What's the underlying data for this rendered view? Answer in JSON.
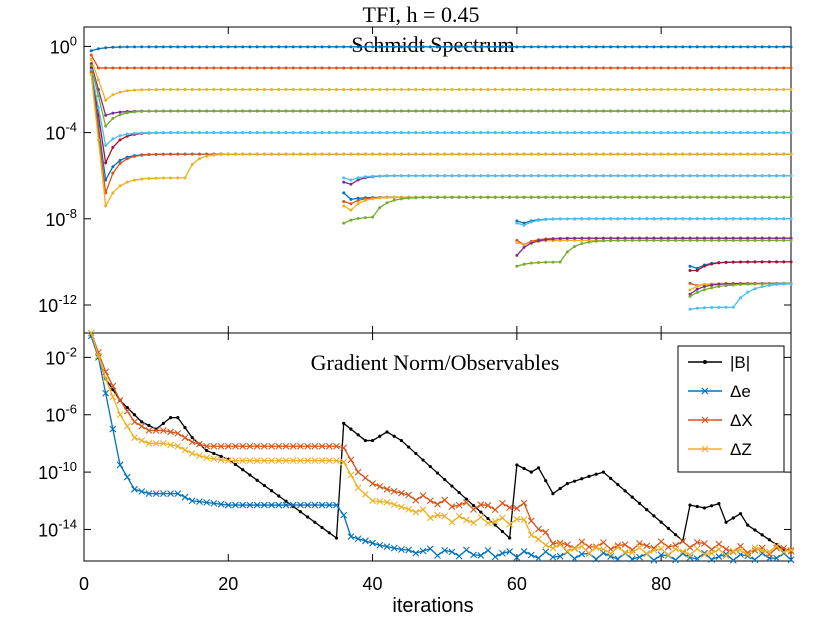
{
  "figure": {
    "title": "TFI, h = 0.45",
    "xlabel": "iterations"
  },
  "colors": {
    "black": "#000000",
    "blue": "#0072BD",
    "red": "#D95319",
    "yellow": "#EDB120",
    "purple": "#7E2F8E",
    "green": "#77AC30",
    "cyan": "#4DBEEE",
    "darkred": "#A2142F"
  },
  "chart_data": [
    {
      "type": "line",
      "title": "Schmidt Spectrum",
      "xlabel": "",
      "ylabel": "",
      "xlim": [
        0,
        98
      ],
      "ylim_log10": [
        -13.3,
        0.9
      ],
      "yscale": "log",
      "x_ticks": [
        0,
        20,
        40,
        60,
        80
      ],
      "y_ticks": [
        {
          "exp": 0,
          "base": "10",
          "sup": "0"
        },
        {
          "exp": -4,
          "base": "10",
          "sup": "-4"
        },
        {
          "exp": -8,
          "base": "10",
          "sup": "-8"
        },
        {
          "exp": -12,
          "base": "10",
          "sup": "-12"
        }
      ],
      "grid": false,
      "series": [
        {
          "name": "s1",
          "color": "blue",
          "x_start": 1,
          "x_end": 98,
          "final_log10": -0.02,
          "initial_log10": -0.2,
          "dip_log10": -0.2,
          "dip_x": 1
        },
        {
          "name": "s2",
          "color": "red",
          "x_start": 1,
          "x_end": 98,
          "final_log10": -1.0,
          "initial_log10": -0.4,
          "dip_log10": -1.0,
          "dip_x": 2
        },
        {
          "name": "s3",
          "color": "yellow",
          "x_start": 1,
          "x_end": 98,
          "final_log10": -2.0,
          "initial_log10": -0.6,
          "dip_log10": -2.5,
          "dip_x": 3
        },
        {
          "name": "s4",
          "color": "purple",
          "x_start": 1,
          "x_end": 98,
          "final_log10": -3.0,
          "initial_log10": -0.8,
          "dip_log10": -3.2,
          "dip_x": 3
        },
        {
          "name": "s5",
          "color": "green",
          "x_start": 1,
          "x_end": 98,
          "final_log10": -3.0,
          "initial_log10": -0.9,
          "dip_log10": -3.7,
          "dip_x": 3
        },
        {
          "name": "s6",
          "color": "darkred",
          "x_start": 1,
          "x_end": 98,
          "final_log10": -4.0,
          "initial_log10": -1.0,
          "dip_log10": -5.4,
          "dip_x": 3
        },
        {
          "name": "s7",
          "color": "cyan",
          "x_start": 1,
          "x_end": 98,
          "final_log10": -4.0,
          "initial_log10": -1.1,
          "dip_log10": -4.6,
          "dip_x": 3
        },
        {
          "name": "s8",
          "color": "blue",
          "x_start": 1,
          "x_end": 98,
          "final_log10": -5.0,
          "initial_log10": -1.2,
          "dip_log10": -6.2,
          "dip_x": 3
        },
        {
          "name": "s9",
          "color": "red",
          "x_start": 1,
          "x_end": 98,
          "final_log10": -5.0,
          "initial_log10": -1.2,
          "dip_log10": -6.8,
          "dip_x": 3
        },
        {
          "name": "s10",
          "color": "yellow",
          "x_start": 1,
          "x_end": 98,
          "final_log10": -5.0,
          "initial_log10": -1.3,
          "dip_log10": -7.4,
          "dip_x": 3,
          "plateau_log10": -6.1,
          "plateau_end": 14,
          "rise_x": 17
        },
        {
          "name": "s11",
          "color": "purple",
          "x_start": 36,
          "x_end": 98,
          "final_log10": -6.0,
          "initial_log10": -6.3,
          "dip_log10": -6.4,
          "dip_x": 37
        },
        {
          "name": "s12",
          "color": "cyan",
          "x_start": 36,
          "x_end": 98,
          "final_log10": -6.0,
          "initial_log10": -6.1,
          "dip_log10": -6.2,
          "dip_x": 37
        },
        {
          "name": "s13",
          "color": "blue",
          "x_start": 36,
          "x_end": 98,
          "final_log10": -7.0,
          "initial_log10": -6.8,
          "dip_log10": -7.1,
          "dip_x": 37
        },
        {
          "name": "s14",
          "color": "red",
          "x_start": 36,
          "x_end": 98,
          "final_log10": -7.0,
          "initial_log10": -7.2,
          "dip_log10": -7.3,
          "dip_x": 37
        },
        {
          "name": "s15",
          "color": "yellow",
          "x_start": 36,
          "x_end": 98,
          "final_log10": -7.0,
          "initial_log10": -7.4,
          "dip_log10": -7.6,
          "dip_x": 37
        },
        {
          "name": "s16",
          "color": "green",
          "x_start": 36,
          "x_end": 98,
          "final_log10": -7.0,
          "initial_log10": -8.2,
          "dip_log10": -8.2,
          "dip_x": 36,
          "plateau_log10": -7.9,
          "plateau_end": 40,
          "rise_x": 44
        },
        {
          "name": "s17",
          "color": "blue",
          "x_start": 60,
          "x_end": 98,
          "final_log10": -8.0,
          "initial_log10": -8.1,
          "dip_log10": -8.2,
          "dip_x": 61
        },
        {
          "name": "s18",
          "color": "cyan",
          "x_start": 60,
          "x_end": 98,
          "final_log10": -8.0,
          "initial_log10": -8.2,
          "dip_log10": -8.3,
          "dip_x": 61
        },
        {
          "name": "s19",
          "color": "red",
          "x_start": 60,
          "x_end": 98,
          "final_log10": -8.9,
          "initial_log10": -9.0,
          "dip_log10": -9.2,
          "dip_x": 61
        },
        {
          "name": "s20",
          "color": "yellow",
          "x_start": 60,
          "x_end": 98,
          "final_log10": -9.0,
          "initial_log10": -9.1,
          "dip_log10": -9.2,
          "dip_x": 61
        },
        {
          "name": "s21",
          "color": "purple",
          "x_start": 60,
          "x_end": 98,
          "final_log10": -8.9,
          "initial_log10": -9.7,
          "dip_log10": -9.7,
          "dip_x": 60,
          "rise_x": 64
        },
        {
          "name": "s22",
          "color": "green",
          "x_start": 60,
          "x_end": 98,
          "final_log10": -9.0,
          "initial_log10": -10.2,
          "dip_log10": -10.2,
          "dip_x": 60,
          "plateau_log10": -10.0,
          "plateau_end": 66,
          "rise_x": 70
        },
        {
          "name": "s23",
          "color": "blue",
          "x_start": 84,
          "x_end": 98,
          "final_log10": -10.0,
          "initial_log10": -10.2,
          "dip_log10": -10.3,
          "dip_x": 85
        },
        {
          "name": "s24",
          "color": "darkred",
          "x_start": 84,
          "x_end": 98,
          "final_log10": -10.0,
          "initial_log10": -10.4,
          "dip_log10": -10.4,
          "dip_x": 85
        },
        {
          "name": "s25",
          "color": "red",
          "x_start": 84,
          "x_end": 98,
          "final_log10": -11.0,
          "initial_log10": -11.0,
          "dip_log10": -11.1,
          "dip_x": 85
        },
        {
          "name": "s26",
          "color": "yellow",
          "x_start": 84,
          "x_end": 98,
          "final_log10": -11.0,
          "initial_log10": -11.3,
          "dip_log10": -11.3,
          "dip_x": 84,
          "rise_x": 87
        },
        {
          "name": "s27",
          "color": "purple",
          "x_start": 84,
          "x_end": 98,
          "final_log10": -11.0,
          "initial_log10": -11.5,
          "dip_log10": -11.5,
          "dip_x": 84,
          "rise_x": 88
        },
        {
          "name": "s28",
          "color": "green",
          "x_start": 84,
          "x_end": 98,
          "final_log10": -11.0,
          "initial_log10": -11.6,
          "dip_log10": -11.6,
          "dip_x": 84,
          "rise_x": 91
        },
        {
          "name": "s29",
          "color": "cyan",
          "x_start": 84,
          "x_end": 98,
          "final_log10": -11.0,
          "initial_log10": -12.2,
          "dip_log10": -12.2,
          "dip_x": 84,
          "plateau_log10": -12.1,
          "plateau_end": 90,
          "rise_x": 95
        }
      ]
    },
    {
      "type": "line",
      "title": "Gradient Norm/Observables",
      "xlabel": "iterations",
      "ylabel": "",
      "xlim": [
        0,
        98
      ],
      "ylim_log10": [
        -16.2,
        -0.3
      ],
      "yscale": "log",
      "x_ticks": [
        0,
        20,
        40,
        60,
        80
      ],
      "y_ticks": [
        {
          "exp": -2,
          "base": "10",
          "sup": "-2"
        },
        {
          "exp": -6,
          "base": "10",
          "sup": "-6"
        },
        {
          "exp": -10,
          "base": "10",
          "sup": "-10"
        },
        {
          "exp": -14,
          "base": "10",
          "sup": "-14"
        }
      ],
      "legend": {
        "placement": "top-right",
        "entries": [
          "|B|",
          "Δe",
          "ΔX",
          "ΔZ"
        ]
      },
      "grid": false,
      "series": [
        {
          "name": "|B|",
          "color": "black",
          "marker": "dot",
          "x": [
            1,
            3,
            5,
            8,
            10,
            12,
            13,
            15,
            17,
            20,
            35,
            36,
            39,
            40,
            42,
            44,
            59,
            60,
            62,
            63,
            65,
            67,
            70,
            72,
            83,
            84,
            86,
            88,
            89,
            91,
            92,
            97
          ],
          "log10": [
            -0.5,
            -3.5,
            -5,
            -6.5,
            -7,
            -6.2,
            -6.2,
            -7.6,
            -8.5,
            -9.1,
            -14.6,
            -6.6,
            -7.8,
            -7.8,
            -7.2,
            -7.8,
            -14.6,
            -9.5,
            -10.0,
            -9.7,
            -11.5,
            -10.8,
            -10.3,
            -10.0,
            -14.8,
            -12.3,
            -12.5,
            -12.2,
            -13.5,
            -12.9,
            -13.7,
            -15.4
          ]
        },
        {
          "name": "Δe",
          "color": "blue",
          "marker": "x",
          "x": [
            1,
            2,
            3,
            5,
            7,
            9,
            11,
            13,
            15,
            20,
            25,
            30,
            35,
            36,
            37,
            39,
            41,
            44,
            50,
            55,
            60,
            61,
            62,
            65,
            70,
            75,
            80,
            85,
            90,
            95,
            98
          ],
          "log10": [
            -0.5,
            -2,
            -4.5,
            -9.5,
            -11.2,
            -11.5,
            -11.5,
            -11.5,
            -12.0,
            -12.3,
            -12.3,
            -12.3,
            -12.3,
            -13.0,
            -14.5,
            -14.8,
            -15.1,
            -15.4,
            -15.6,
            -15.7,
            -15.7,
            -15.7,
            -15.8,
            -15.8,
            -15.8,
            -15.9,
            -15.9,
            -15.9,
            -15.9,
            -15.9,
            -15.9
          ]
        },
        {
          "name": "ΔX",
          "color": "red",
          "marker": "x",
          "x": [
            1,
            3,
            5,
            7,
            9,
            11,
            13,
            15,
            17,
            20,
            25,
            30,
            35,
            36,
            38,
            40,
            42,
            45,
            50,
            55,
            60,
            61,
            63,
            66,
            70,
            75,
            80,
            85,
            90,
            95,
            98
          ],
          "log10": [
            -0.3,
            -3,
            -5.0,
            -6.5,
            -7.1,
            -7.1,
            -7.3,
            -7.9,
            -8.2,
            -8.2,
            -8.2,
            -8.2,
            -8.2,
            -8.3,
            -10.0,
            -10.8,
            -11.2,
            -11.6,
            -12.2,
            -12.4,
            -12.4,
            -12.4,
            -14.0,
            -15.1,
            -15.1,
            -15.2,
            -15.1,
            -15.0,
            -15.4,
            -15.5,
            -15.3
          ]
        },
        {
          "name": "ΔZ",
          "color": "yellow",
          "marker": "x",
          "x": [
            1,
            3,
            5,
            7,
            9,
            11,
            13,
            15,
            17,
            20,
            25,
            30,
            35,
            36,
            38,
            40,
            42,
            45,
            50,
            55,
            60,
            61,
            63,
            66,
            70,
            75,
            80,
            85,
            90,
            95,
            98
          ],
          "log10": [
            -0.3,
            -3.5,
            -6.0,
            -7.6,
            -8.0,
            -8.0,
            -8.2,
            -8.7,
            -9.0,
            -9.2,
            -9.2,
            -9.2,
            -9.2,
            -9.3,
            -11.1,
            -12.0,
            -12.1,
            -12.6,
            -13.2,
            -13.4,
            -13.4,
            -13.4,
            -14.9,
            -15.3,
            -15.4,
            -15.5,
            -15.5,
            -15.6,
            -15.6,
            -15.4,
            -15.4
          ]
        }
      ]
    }
  ]
}
